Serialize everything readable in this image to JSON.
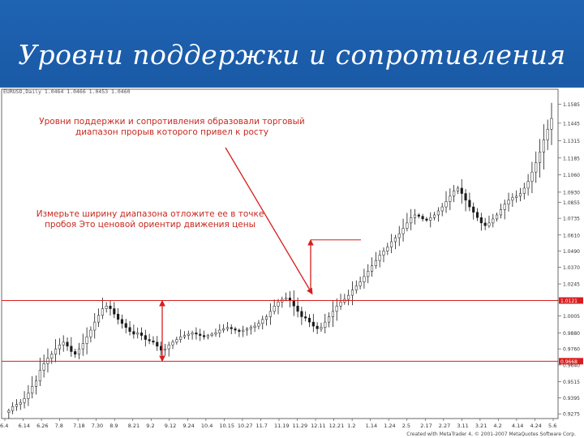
{
  "slide": {
    "title": "Уровни поддержки и сопротивления"
  },
  "chart_header": "EURUSD,Daily  1.0464 1.0466 1.0453 1.0460",
  "annotations": {
    "first": "Уровни поддержки и сопротивления образовали торговый диапазон прорыв которого привел к росту",
    "second": "Измерьте ширину диапазона отложите ее в точке пробоя Это ценовой ориентир движения цены"
  },
  "credit": "Created with MetaTrader 4, © 2001-2007 MetaQuotes Software Corp.",
  "chart_data": {
    "type": "candlestick",
    "title": "",
    "x_tick_labels": [
      "6.4",
      "6.14",
      "6.26",
      "7.8",
      "7.18",
      "7.30",
      "8.9",
      "8.21",
      "9.2",
      "9.12",
      "9.24",
      "10.4",
      "10.15",
      "10.27",
      "11.7",
      "11.19",
      "11.29",
      "12.11",
      "12.21",
      "1.2",
      "1.14",
      "1.24",
      "2.5",
      "2.17",
      "2.27",
      "3.11",
      "3.21",
      "4.2",
      "4.14",
      "4.24",
      "5.6"
    ],
    "y_tick_labels": [
      "1.1585",
      "1.1445",
      "1.1315",
      "1.1185",
      "1.1060",
      "1.0930",
      "1.0855",
      "1.0735",
      "1.0610",
      "1.0490",
      "1.0370",
      "1.0245",
      "1.0121",
      "1.0005",
      "0.9880",
      "0.9760",
      "0.9640",
      "0.9515",
      "0.9395",
      "0.9275"
    ],
    "ylim": [
      0.924,
      1.165
    ],
    "levels": [
      {
        "name": "resistance",
        "value": 1.0121,
        "label": "1.0121",
        "color": "#d81e1e"
      },
      {
        "name": "support",
        "value": 0.9668,
        "label": "0.9668",
        "color": "#d81e1e"
      }
    ],
    "close_path": [
      [
        0,
        0.9285
      ],
      [
        2,
        0.93
      ],
      [
        4,
        0.933
      ],
      [
        6,
        0.9345
      ],
      [
        8,
        0.936
      ],
      [
        10,
        0.939
      ],
      [
        12,
        0.943
      ],
      [
        14,
        0.948
      ],
      [
        16,
        0.952
      ],
      [
        18,
        0.96
      ],
      [
        20,
        0.965
      ],
      [
        22,
        0.969
      ],
      [
        24,
        0.972
      ],
      [
        26,
        0.976
      ],
      [
        28,
        0.979
      ],
      [
        30,
        0.981
      ],
      [
        32,
        0.978
      ],
      [
        34,
        0.974
      ],
      [
        36,
        0.972
      ],
      [
        38,
        0.976
      ],
      [
        40,
        0.98
      ],
      [
        42,
        0.985
      ],
      [
        44,
        0.99
      ],
      [
        46,
        0.996
      ],
      [
        48,
        1.001
      ],
      [
        50,
        1.006
      ],
      [
        52,
        1.008
      ],
      [
        54,
        1.006
      ],
      [
        56,
        1.002
      ],
      [
        58,
        0.998
      ],
      [
        60,
        0.995
      ],
      [
        62,
        0.992
      ],
      [
        64,
        0.989
      ],
      [
        66,
        0.987
      ],
      [
        68,
        0.988
      ],
      [
        70,
        0.986
      ],
      [
        72,
        0.983
      ],
      [
        74,
        0.982
      ],
      [
        76,
        0.981
      ],
      [
        78,
        0.978
      ],
      [
        80,
        0.975
      ],
      [
        82,
        0.976
      ],
      [
        84,
        0.979
      ],
      [
        86,
        0.981
      ],
      [
        88,
        0.983
      ],
      [
        90,
        0.985
      ],
      [
        92,
        0.986
      ],
      [
        94,
        0.987
      ],
      [
        96,
        0.988
      ],
      [
        98,
        0.987
      ],
      [
        100,
        0.986
      ],
      [
        102,
        0.985
      ],
      [
        104,
        0.986
      ],
      [
        106,
        0.987
      ],
      [
        108,
        0.988
      ],
      [
        110,
        0.99
      ],
      [
        112,
        0.991
      ],
      [
        114,
        0.992
      ],
      [
        116,
        0.991
      ],
      [
        118,
        0.99
      ],
      [
        120,
        0.989
      ],
      [
        122,
        0.99
      ],
      [
        124,
        0.991
      ],
      [
        126,
        0.992
      ],
      [
        128,
        0.993
      ],
      [
        130,
        0.995
      ],
      [
        132,
        0.998
      ],
      [
        134,
        1.0
      ],
      [
        136,
        1.004
      ],
      [
        138,
        1.008
      ],
      [
        140,
        1.011
      ],
      [
        142,
        1.013
      ],
      [
        144,
        1.014
      ],
      [
        146,
        1.012
      ],
      [
        148,
        1.008
      ],
      [
        150,
        1.004
      ],
      [
        152,
        1.0
      ],
      [
        154,
        0.999
      ],
      [
        156,
        0.996
      ],
      [
        158,
        0.993
      ],
      [
        160,
        0.991
      ],
      [
        162,
        0.992
      ],
      [
        164,
        0.996
      ],
      [
        166,
        1.0
      ],
      [
        168,
        1.004
      ],
      [
        170,
        1.008
      ],
      [
        172,
        1.011
      ],
      [
        174,
        1.013
      ],
      [
        176,
        1.016
      ],
      [
        178,
        1.02
      ],
      [
        180,
        1.023
      ],
      [
        182,
        1.026
      ],
      [
        184,
        1.03
      ],
      [
        186,
        1.034
      ],
      [
        188,
        1.038
      ],
      [
        190,
        1.042
      ],
      [
        192,
        1.046
      ],
      [
        194,
        1.049
      ],
      [
        196,
        1.052
      ],
      [
        198,
        1.056
      ],
      [
        200,
        1.059
      ],
      [
        202,
        1.062
      ],
      [
        204,
        1.066
      ],
      [
        206,
        1.07
      ],
      [
        208,
        1.074
      ],
      [
        210,
        1.076
      ],
      [
        212,
        1.075
      ],
      [
        214,
        1.073
      ],
      [
        216,
        1.072
      ],
      [
        218,
        1.074
      ],
      [
        220,
        1.076
      ],
      [
        222,
        1.079
      ],
      [
        224,
        1.082
      ],
      [
        226,
        1.086
      ],
      [
        228,
        1.09
      ],
      [
        230,
        1.094
      ],
      [
        232,
        1.096
      ],
      [
        234,
        1.092
      ],
      [
        236,
        1.087
      ],
      [
        238,
        1.082
      ],
      [
        240,
        1.078
      ],
      [
        242,
        1.074
      ],
      [
        244,
        1.07
      ],
      [
        246,
        1.068
      ],
      [
        248,
        1.07
      ],
      [
        250,
        1.073
      ],
      [
        252,
        1.076
      ],
      [
        254,
        1.08
      ],
      [
        256,
        1.084
      ],
      [
        258,
        1.087
      ],
      [
        260,
        1.089
      ],
      [
        262,
        1.09
      ],
      [
        264,
        1.092
      ],
      [
        266,
        1.096
      ],
      [
        268,
        1.101
      ],
      [
        270,
        1.108
      ],
      [
        272,
        1.115
      ],
      [
        274,
        1.123
      ],
      [
        276,
        1.132
      ],
      [
        278,
        1.14
      ],
      [
        280,
        1.148
      ]
    ]
  },
  "colors": {
    "slide_bg": "#1b5eaa",
    "title": "#ffffff",
    "annotation": "#c8281e",
    "level_line": "#d81e1e",
    "arrow": "#d81e1e",
    "candle": "#1a1a1a"
  }
}
